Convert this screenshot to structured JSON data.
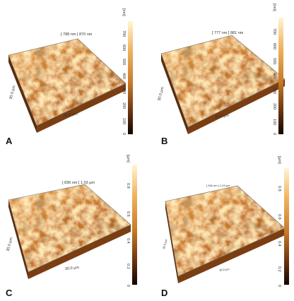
{
  "panels": [
    {
      "id": "A",
      "letter": "A",
      "scan": "[ 788 nm ] 870 nm",
      "axis_left": "30.0 µm",
      "axis_bottom": "30.0 µm",
      "unit": "[nm]",
      "ticks": [
        "700",
        "600",
        "500",
        "400",
        "300",
        "200",
        "100",
        "0"
      ]
    },
    {
      "id": "B",
      "letter": "B",
      "scan": "[ 777 nm ] 881 nm",
      "axis_left": "30.0 µm",
      "axis_bottom": "30.0 µm",
      "unit": "[nm]",
      "ticks": [
        "700",
        "600",
        "500",
        "400",
        "300",
        "200",
        "100",
        "0"
      ]
    },
    {
      "id": "C",
      "letter": "C",
      "scan": "[ 836 nm ] 1.03 µm",
      "axis_left": "30.0 µm",
      "axis_bottom": "30.0 µm",
      "unit": "[µm]",
      "ticks": [
        "0.8",
        "0.6",
        "0.4",
        "0.2",
        "0"
      ]
    },
    {
      "id": "D",
      "letter": "D",
      "scan": "[ 906 nm ] 1.03 µm",
      "axis_left": "30.0 µm",
      "axis_bottom": "30.0 µm",
      "unit": "[µm]",
      "ticks": [
        "0.8",
        "0.6",
        "0.4",
        "0.2",
        "0"
      ]
    }
  ],
  "colors": {
    "high": "#fff3c4",
    "mid": "#d0852a",
    "low": "#5a2a08",
    "base": "#1a0a02"
  }
}
